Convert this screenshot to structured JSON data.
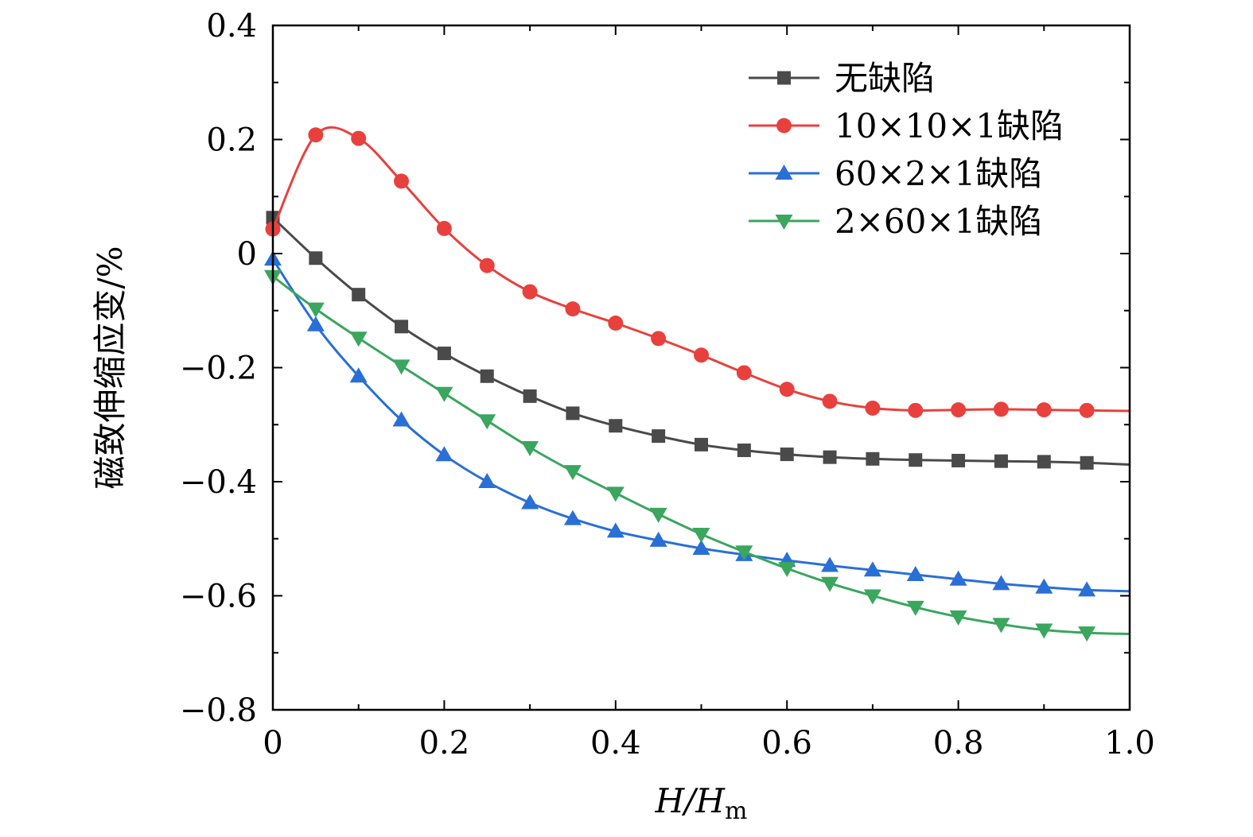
{
  "chart_data": {
    "type": "line",
    "xlabel": {
      "main": "H/H",
      "sub": "m"
    },
    "ylabel": "磁致伸缩应变/%",
    "xlim": [
      0,
      1.0
    ],
    "ylim": [
      -0.8,
      0.4
    ],
    "xticks": [
      0,
      0.2,
      0.4,
      0.6,
      0.8,
      1.0
    ],
    "xtick_labels": [
      "0",
      "0.2",
      "0.4",
      "0.6",
      "0.8",
      "1.0"
    ],
    "yticks": [
      0.4,
      0.2,
      0,
      -0.2,
      -0.4,
      -0.6,
      -0.8
    ],
    "ytick_labels": [
      "0.4",
      "0.2",
      "0",
      "−0.2",
      "−0.4",
      "−0.6",
      "−0.8"
    ],
    "grid": false,
    "legend_position": "top-right",
    "x": [
      0,
      0.05,
      0.1,
      0.15,
      0.2,
      0.25,
      0.3,
      0.35,
      0.4,
      0.45,
      0.5,
      0.55,
      0.6,
      0.65,
      0.7,
      0.75,
      0.8,
      0.85,
      0.9,
      0.95
    ],
    "series": [
      {
        "name": "无缺陷",
        "color": "#4a4a4a",
        "marker": "square",
        "values": [
          0.063,
          -0.008,
          -0.072,
          -0.128,
          -0.175,
          -0.215,
          -0.25,
          -0.28,
          -0.302,
          -0.32,
          -0.335,
          -0.345,
          -0.352,
          -0.357,
          -0.36,
          -0.362,
          -0.363,
          -0.364,
          -0.365,
          -0.367
        ],
        "end_value": -0.37
      },
      {
        "name": "10×10×1缺陷",
        "color": "#e8413d",
        "marker": "circle",
        "values": [
          0.043,
          0.208,
          0.202,
          0.127,
          0.044,
          -0.021,
          -0.067,
          -0.097,
          -0.122,
          -0.149,
          -0.178,
          -0.209,
          -0.238,
          -0.259,
          -0.271,
          -0.275,
          -0.274,
          -0.273,
          -0.274,
          -0.275
        ],
        "end_value": -0.276
      },
      {
        "name": "60×2×1缺陷",
        "color": "#2a6fd6",
        "marker": "triangle-up",
        "values": [
          -0.01,
          -0.125,
          -0.215,
          -0.292,
          -0.353,
          -0.4,
          -0.437,
          -0.465,
          -0.487,
          -0.503,
          -0.517,
          -0.528,
          -0.538,
          -0.547,
          -0.555,
          -0.563,
          -0.571,
          -0.579,
          -0.585,
          -0.59
        ],
        "end_value": -0.592
      },
      {
        "name": "2×60×1缺陷",
        "color": "#3aa65e",
        "marker": "triangle-down",
        "values": [
          -0.04,
          -0.097,
          -0.148,
          -0.197,
          -0.245,
          -0.293,
          -0.34,
          -0.382,
          -0.42,
          -0.457,
          -0.492,
          -0.523,
          -0.552,
          -0.578,
          -0.6,
          -0.62,
          -0.637,
          -0.65,
          -0.66,
          -0.665
        ],
        "end_value": -0.667
      }
    ]
  }
}
